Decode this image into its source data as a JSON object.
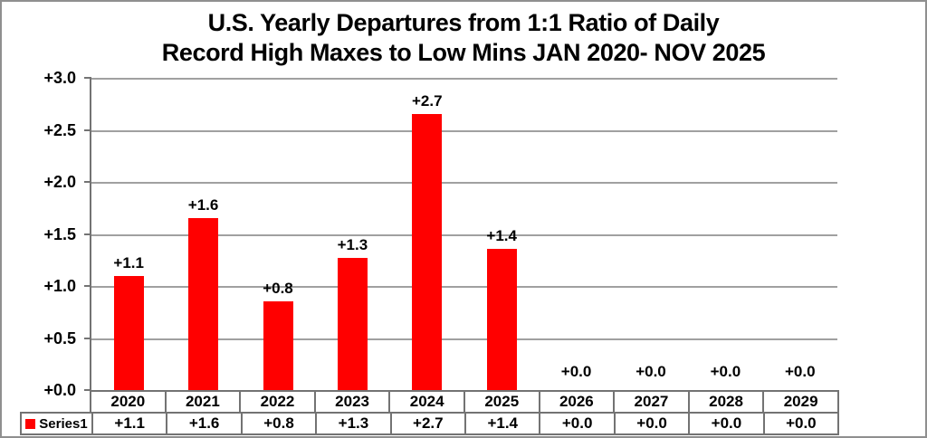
{
  "title": {
    "line1": "U.S. Yearly Departures from 1:1 Ratio of Daily",
    "line2": "Record High Maxes to Low Mins JAN 2020- NOV 2025"
  },
  "y_axis": {
    "tick_labels": [
      "+3.0",
      "+2.5",
      "+2.0",
      "+1.5",
      "+1.0",
      "+0.5",
      "+0.0"
    ]
  },
  "chart_data": {
    "type": "bar",
    "title": "U.S. Yearly Departures from 1:1 Ratio of Daily Record High Maxes to Low Mins JAN 2020- NOV 2025",
    "categories": [
      "2020",
      "2021",
      "2022",
      "2023",
      "2024",
      "2025",
      "2026",
      "2027",
      "2028",
      "2029"
    ],
    "series": [
      {
        "name": "Series1",
        "values": [
          1.1,
          1.65,
          0.85,
          1.27,
          2.65,
          1.36,
          0.0,
          0.0,
          0.0,
          0.0
        ],
        "data_labels": [
          "+1.1",
          "+1.6",
          "+0.8",
          "+1.3",
          "+2.7",
          "+1.4",
          "+0.0",
          "+0.0",
          "+0.0",
          "+0.0"
        ],
        "color": "#FF0000"
      }
    ],
    "xlabel": "",
    "ylabel": "",
    "ylim": [
      0.0,
      3.0
    ],
    "ytick_step": 0.5,
    "grid": true,
    "gridline_color": "#a0a0a0",
    "axis_color": "#737373",
    "legend_position": "bottom-left-table"
  },
  "data_table": {
    "legend_label": "Series1",
    "legend_marker_color": "#FF0000",
    "columns": [
      "2020",
      "2021",
      "2022",
      "2023",
      "2024",
      "2025",
      "2026",
      "2027",
      "2028",
      "2029"
    ],
    "row_values": [
      "+1.1",
      "+1.6",
      "+0.8",
      "+1.3",
      "+2.7",
      "+1.4",
      "+0.0",
      "+0.0",
      "+0.0",
      "+0.0"
    ]
  }
}
